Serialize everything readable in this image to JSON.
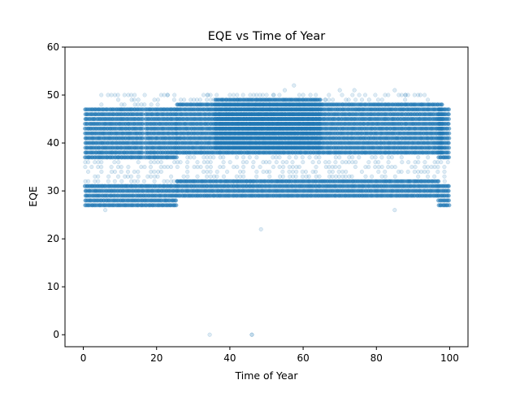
{
  "chart_data": {
    "type": "scatter",
    "title": "EQE vs Time of Year",
    "xlabel": "Time of Year",
    "ylabel": "EQE",
    "xlim": [
      -5,
      105
    ],
    "ylim": [
      -2.5,
      60
    ],
    "xticks": [
      0,
      20,
      40,
      60,
      80,
      100
    ],
    "yticks": [
      0,
      10,
      20,
      30,
      40,
      50,
      60
    ],
    "grid": false,
    "legend": "none",
    "point_color": "#1f77b4",
    "point_alpha": 0.15,
    "bands": [
      {
        "x_range": [
          0.5,
          16.5
        ],
        "y_range": [
          37,
          47
        ],
        "density": "dense"
      },
      {
        "x_range": [
          17,
          25.5
        ],
        "y_range": [
          37,
          47
        ],
        "density": "dense"
      },
      {
        "x_range": [
          25.5,
          98
        ],
        "y_range": [
          38,
          48
        ],
        "density": "dense"
      },
      {
        "x_range": [
          36,
          65
        ],
        "y_range": [
          39,
          49
        ],
        "density": "dense"
      },
      {
        "x_range": [
          97,
          100
        ],
        "y_range": [
          37,
          47
        ],
        "density": "dense"
      },
      {
        "x_range": [
          0.5,
          25.5
        ],
        "y_range": [
          27,
          31
        ],
        "density": "dense"
      },
      {
        "x_range": [
          25.5,
          97
        ],
        "y_range": [
          29,
          32
        ],
        "density": "dense"
      },
      {
        "x_range": [
          97,
          100
        ],
        "y_range": [
          27,
          31
        ],
        "density": "dense"
      },
      {
        "x_range": [
          0.5,
          100
        ],
        "y_range": [
          31,
          38
        ],
        "density": "sparse"
      },
      {
        "x_range": [
          5,
          95
        ],
        "y_range": [
          47,
          50
        ],
        "density": "sparse"
      }
    ],
    "points": [
      {
        "x": 34.5,
        "y": 0
      },
      {
        "x": 46,
        "y": 0
      },
      {
        "x": 46,
        "y": 0
      },
      {
        "x": 48.5,
        "y": 22
      },
      {
        "x": 85,
        "y": 26
      },
      {
        "x": 6,
        "y": 26
      },
      {
        "x": 57.5,
        "y": 52
      },
      {
        "x": 55,
        "y": 51
      },
      {
        "x": 85,
        "y": 51
      },
      {
        "x": 70,
        "y": 51
      },
      {
        "x": 74,
        "y": 51
      },
      {
        "x": 23,
        "y": 50
      },
      {
        "x": 34,
        "y": 50
      },
      {
        "x": 52,
        "y": 50
      },
      {
        "x": 60,
        "y": 50
      },
      {
        "x": 62,
        "y": 50
      },
      {
        "x": 88,
        "y": 50
      },
      {
        "x": 92,
        "y": 50
      },
      {
        "x": 15,
        "y": 49
      },
      {
        "x": 42,
        "y": 49
      },
      {
        "x": 66,
        "y": 49
      },
      {
        "x": 78,
        "y": 49
      }
    ]
  }
}
